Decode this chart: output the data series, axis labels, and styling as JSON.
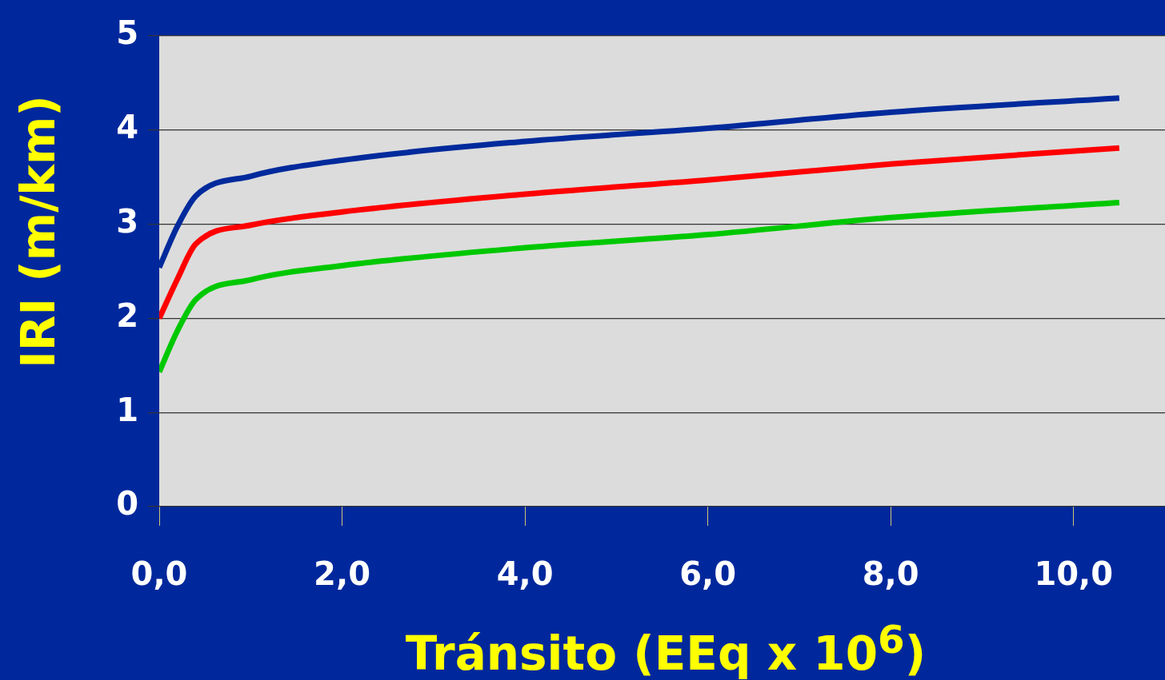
{
  "chart_data": {
    "type": "line",
    "xlabel": "Tránsito (EEq x 10$^{6}$)",
    "ylabel": "IRI (m/km)",
    "x": [
      0,
      0.2,
      0.4,
      1,
      2,
      4,
      6,
      8,
      10.5
    ],
    "series": [
      {
        "color": "#002a9c",
        "values": [
          2.54,
          2.98,
          3.3,
          3.51,
          3.68,
          3.88,
          4.02,
          4.19,
          4.34
        ]
      },
      {
        "color": "#ff0000",
        "values": [
          2.0,
          2.42,
          2.79,
          2.99,
          3.13,
          3.32,
          3.47,
          3.64,
          3.81
        ]
      },
      {
        "color": "#00c800",
        "values": [
          1.43,
          1.87,
          2.2,
          2.41,
          2.56,
          2.75,
          2.89,
          3.07,
          3.23
        ]
      }
    ],
    "xlim": [
      0,
      11
    ],
    "ylim": [
      0,
      5
    ],
    "xticks": [
      {
        "value": 0,
        "label": "0,0"
      },
      {
        "value": 2,
        "label": "2,0"
      },
      {
        "value": 4,
        "label": "4,0"
      },
      {
        "value": 6,
        "label": "6,0"
      },
      {
        "value": 8,
        "label": "8,0"
      },
      {
        "value": 10,
        "label": "10,0"
      }
    ],
    "yticks": [
      0,
      1,
      2,
      3,
      4,
      5
    ],
    "grid": "y",
    "legend": false,
    "marker": "none",
    "line_style": "solid"
  }
}
